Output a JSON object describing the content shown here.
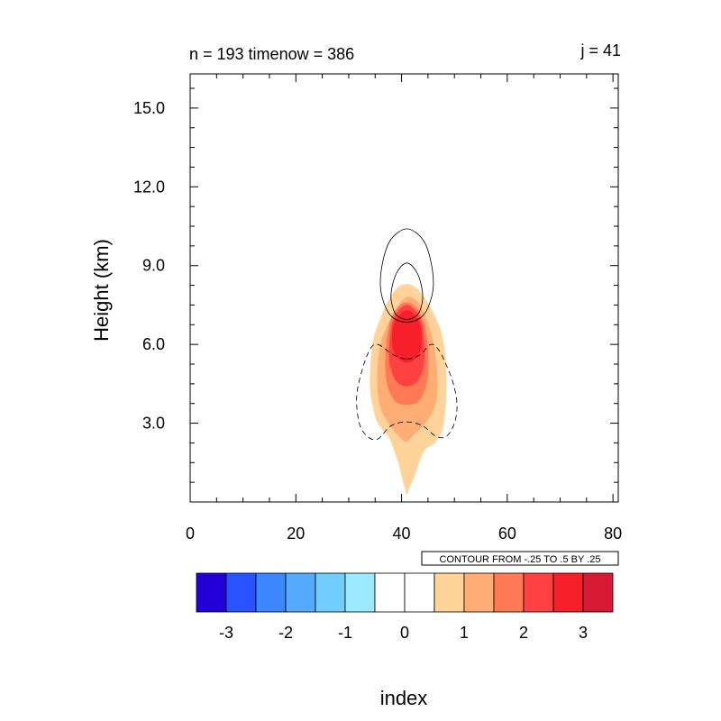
{
  "header": {
    "left_title": "n = 193 timenow = 386",
    "right_title": "j = 41"
  },
  "contour_info": "CONTOUR FROM -.25 TO .5 BY .25",
  "colors": {
    "bins": [
      "#2400d8",
      "#2a52ff",
      "#3c86ff",
      "#56aafe",
      "#72cdff",
      "#9ceaff",
      "#ffffff",
      "#ffffff",
      "#ffd399",
      "#ffac75",
      "#ff7a55",
      "#ff4141",
      "#f7202a",
      "#d61a34"
    ]
  },
  "chart_data": {
    "type": "heatmap",
    "xlabel": "",
    "ylabel": "Height (km)",
    "xlim": [
      0,
      81
    ],
    "ylim": [
      0,
      16.3
    ],
    "x_ticks": [
      0,
      20,
      40,
      60,
      80
    ],
    "x_tick_labels": [
      "0",
      "20",
      "40",
      "60",
      "80"
    ],
    "y_ticks": [
      3,
      6,
      9,
      12,
      15
    ],
    "y_tick_labels": [
      "3.0",
      "6.0",
      "9.0",
      "12.0",
      "15.0"
    ],
    "filled_contours": [
      {
        "level": 1,
        "color": "#ffd399",
        "x": [
          41,
          43.5,
          46.5,
          48,
          48.5,
          48,
          46.5,
          44.5,
          43.5,
          42.5,
          41.6,
          41,
          40.5,
          39.5,
          38.5,
          37.5,
          35.5,
          34.5,
          34,
          34.5,
          36,
          38.5,
          41
        ],
        "y": [
          8.3,
          8.0,
          7.0,
          6.0,
          4.5,
          3.0,
          2.3,
          2.0,
          1.6,
          1.0,
          0.6,
          0.3,
          0.6,
          1.4,
          2.0,
          2.5,
          3.0,
          3.7,
          4.5,
          6.0,
          7.0,
          8.0,
          8.3
        ]
      },
      {
        "level": 1.5,
        "color": "#ffac75",
        "x": [
          41,
          43.5,
          45.5,
          46.5,
          46.8,
          46,
          44.5,
          42.5,
          41,
          39.5,
          37.5,
          36,
          35.4,
          36,
          38.5,
          41
        ],
        "y": [
          7.8,
          7.5,
          6.5,
          5.5,
          4.2,
          3.5,
          3.0,
          2.6,
          2.3,
          2.5,
          3.0,
          3.6,
          4.5,
          6.0,
          7.2,
          7.8
        ]
      },
      {
        "level": 2,
        "color": "#ff7a55",
        "x": [
          41,
          43.5,
          44.8,
          45,
          43.5,
          41,
          38.5,
          37,
          37.2,
          38.5,
          41
        ],
        "y": [
          7.6,
          7.2,
          6.2,
          4.8,
          3.9,
          3.7,
          3.9,
          4.8,
          6.2,
          7.2,
          7.6
        ]
      },
      {
        "level": 2.5,
        "color": "#ff4141",
        "x": [
          41,
          43.5,
          44.3,
          44.2,
          43,
          41,
          39,
          37.8,
          37.7,
          38.5,
          41
        ],
        "y": [
          7.5,
          7.0,
          6.0,
          5.2,
          4.6,
          4.4,
          4.6,
          5.2,
          6.0,
          7.0,
          7.5
        ]
      },
      {
        "level": 3,
        "color": "#f7202a",
        "x": [
          41,
          43.2,
          43.8,
          43.2,
          41,
          38.8,
          38.2,
          38.8,
          41
        ],
        "y": [
          7.3,
          6.9,
          6.2,
          5.6,
          5.3,
          5.6,
          6.2,
          6.9,
          7.3
        ]
      }
    ],
    "line_contours": [
      {
        "level": 0.25,
        "style": "solid",
        "x": [
          41,
          44,
          45.5,
          46,
          45,
          43.5,
          41,
          38.5,
          37,
          36,
          36.5,
          38,
          41
        ],
        "y": [
          10.4,
          10.0,
          9.2,
          8.2,
          7.4,
          7.0,
          6.85,
          7.0,
          7.4,
          8.2,
          9.2,
          10.0,
          10.4
        ]
      },
      {
        "level": 0.5,
        "style": "solid",
        "x": [
          41,
          43,
          44,
          43.5,
          42.5,
          41,
          39.5,
          38.5,
          38,
          39,
          41
        ],
        "y": [
          9.1,
          8.7,
          7.9,
          7.3,
          7.05,
          6.95,
          7.05,
          7.3,
          7.9,
          8.7,
          9.1
        ]
      },
      {
        "level": -0.25,
        "style": "dashed",
        "x": [
          41,
          43.5,
          45.5,
          47,
          48.5,
          49.8,
          50.5,
          50,
          48.5,
          46.5,
          44,
          41,
          38,
          35.5,
          33.5,
          32,
          31.5,
          32.5,
          34,
          35.5,
          38.5,
          41
        ],
        "y": [
          5.45,
          5.6,
          6.0,
          5.8,
          5.2,
          4.5,
          3.7,
          3.0,
          2.5,
          2.5,
          2.9,
          3.05,
          2.9,
          2.4,
          2.5,
          3.0,
          4.0,
          5.0,
          5.8,
          6.0,
          5.6,
          5.45
        ]
      }
    ]
  },
  "colorbar": {
    "levels": [
      -3.5,
      -3,
      -2.5,
      -2,
      -1.5,
      -1,
      -0.5,
      0,
      0.5,
      1,
      1.5,
      2,
      2.5,
      3,
      3.5
    ],
    "tick_values": [
      -3,
      -2,
      -1,
      0,
      1,
      2,
      3
    ],
    "tick_labels": [
      "-3",
      "-2",
      "-1",
      "0",
      "1",
      "2",
      "3"
    ],
    "label": "index"
  }
}
